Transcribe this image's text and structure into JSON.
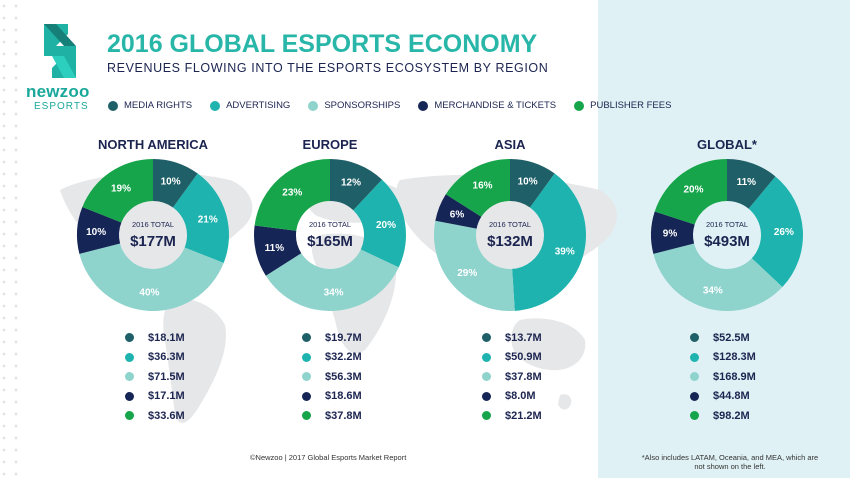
{
  "logo": {
    "word": "newzoo",
    "word2": "ESPORTS"
  },
  "title": "2016 GLOBAL ESPORTS ECONOMY",
  "subtitle": "REVENUES FLOWING INTO THE ESPORTS ECOSYSTEM BY REGION",
  "colors": {
    "media_rights": "#1f5f68",
    "advertising": "#1eb3ae",
    "sponsorships": "#8fd3cd",
    "merchandise": "#152555",
    "publisher": "#16a54a",
    "global_panel": "#dff1f4"
  },
  "legend": [
    {
      "label": "MEDIA RIGHTS",
      "color": "#1f5f68"
    },
    {
      "label": "ADVERTISING",
      "color": "#1eb3ae"
    },
    {
      "label": "SPONSORSHIPS",
      "color": "#8fd3cd"
    },
    {
      "label": "MERCHANDISE & TICKETS",
      "color": "#152555"
    },
    {
      "label": "PUBLISHER FEES",
      "color": "#16a54a"
    }
  ],
  "chart_data": [
    {
      "type": "pie",
      "title": "NORTH AMERICA",
      "total_label": "2016 TOTAL",
      "total": "$177M",
      "slices": [
        {
          "category": "Media Rights",
          "percent": 10,
          "value": "$18.1M"
        },
        {
          "category": "Advertising",
          "percent": 21,
          "value": "$36.3M"
        },
        {
          "category": "Sponsorships",
          "percent": 40,
          "value": "$71.5M"
        },
        {
          "category": "Merchandise & Tickets",
          "percent": 10,
          "value": "$17.1M"
        },
        {
          "category": "Publisher Fees",
          "percent": 19,
          "value": "$33.6M"
        }
      ]
    },
    {
      "type": "pie",
      "title": "EUROPE",
      "total_label": "2016 TOTAL",
      "total": "$165M",
      "slices": [
        {
          "category": "Media Rights",
          "percent": 12,
          "value": "$19.7M"
        },
        {
          "category": "Advertising",
          "percent": 20,
          "value": "$32.2M"
        },
        {
          "category": "Sponsorships",
          "percent": 34,
          "value": "$56.3M"
        },
        {
          "category": "Merchandise & Tickets",
          "percent": 11,
          "value": "$18.6M"
        },
        {
          "category": "Publisher Fees",
          "percent": 23,
          "value": "$37.8M"
        }
      ]
    },
    {
      "type": "pie",
      "title": "ASIA",
      "total_label": "2016 TOTAL",
      "total": "$132M",
      "slices": [
        {
          "category": "Media Rights",
          "percent": 10,
          "value": "$13.7M"
        },
        {
          "category": "Advertising",
          "percent": 39,
          "value": "$50.9M"
        },
        {
          "category": "Sponsorships",
          "percent": 29,
          "value": "$37.8M"
        },
        {
          "category": "Merchandise & Tickets",
          "percent": 6,
          "value": "$8.0M"
        },
        {
          "category": "Publisher Fees",
          "percent": 16,
          "value": "$21.2M"
        }
      ]
    },
    {
      "type": "pie",
      "title": "GLOBAL*",
      "total_label": "2016 TOTAL",
      "total": "$493M",
      "slices": [
        {
          "category": "Media Rights",
          "percent": 11,
          "value": "$52.5M"
        },
        {
          "category": "Advertising",
          "percent": 26,
          "value": "$128.3M"
        },
        {
          "category": "Sponsorships",
          "percent": 34,
          "value": "$168.9M"
        },
        {
          "category": "Merchandise & Tickets",
          "percent": 9,
          "value": "$44.8M"
        },
        {
          "category": "Publisher Fees",
          "percent": 20,
          "value": "$98.2M"
        }
      ]
    }
  ],
  "footer": "©Newzoo | 2017 Global Esports Market Report",
  "footnote": "*Also includes LATAM, Oceania, and MEA, which are not shown on the left."
}
